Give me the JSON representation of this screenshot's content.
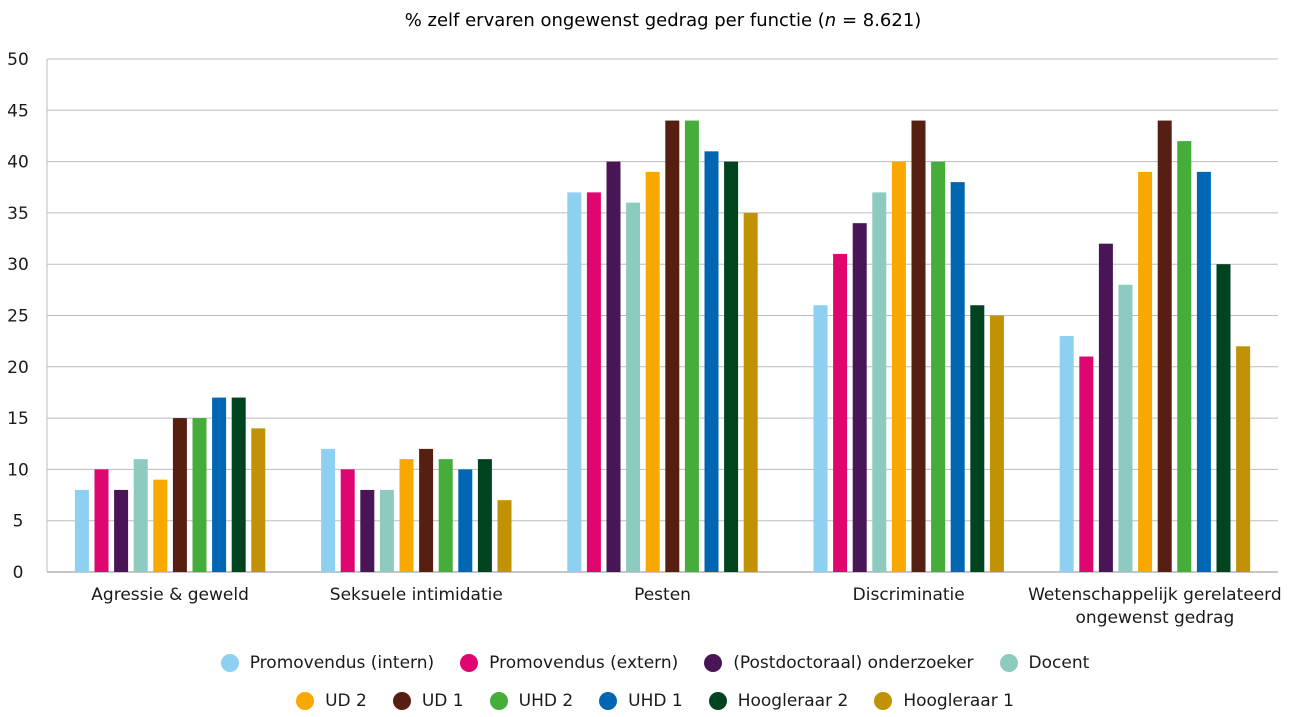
{
  "chart_data": {
    "type": "bar",
    "title_prefix": "% zelf ervaren ongewenst gedrag per functie (",
    "title_n": "n",
    "title_suffix": " = 8.621)",
    "categories": [
      [
        "Agressie & geweld"
      ],
      [
        "Seksuele intimidatie"
      ],
      [
        "Pesten"
      ],
      [
        "Discriminatie"
      ],
      [
        "Wetenschappelijk gerelateerd",
        "ongewenst gedrag"
      ]
    ],
    "ylim": [
      0,
      50
    ],
    "yticks": [
      0,
      5,
      10,
      15,
      20,
      25,
      30,
      35,
      40,
      45,
      50
    ],
    "grid": true,
    "legend_position": "bottom",
    "series": [
      {
        "name": "Promovendus (intern)",
        "color": "#8ed0f1",
        "values": [
          8,
          12,
          37,
          26,
          23
        ]
      },
      {
        "name": "Promovendus (extern)",
        "color": "#e0066f",
        "values": [
          10,
          10,
          37,
          31,
          21
        ]
      },
      {
        "name": "(Postdoctoraal) onderzoeker",
        "color": "#4a1557",
        "values": [
          8,
          8,
          40,
          34,
          32
        ]
      },
      {
        "name": "Docent",
        "color": "#8dcbc1",
        "values": [
          11,
          8,
          36,
          37,
          28
        ]
      },
      {
        "name": "UD 2",
        "color": "#f9a800",
        "values": [
          9,
          11,
          39,
          40,
          39
        ]
      },
      {
        "name": "UD 1",
        "color": "#561f12",
        "values": [
          15,
          12,
          44,
          44,
          44
        ]
      },
      {
        "name": "UHD 2",
        "color": "#45ad3a",
        "values": [
          15,
          11,
          44,
          40,
          42
        ]
      },
      {
        "name": "UHD 1",
        "color": "#0066b2",
        "values": [
          17,
          10,
          41,
          38,
          39
        ]
      },
      {
        "name": "Hoogleraar 2",
        "color": "#00431f",
        "values": [
          17,
          11,
          40,
          26,
          30
        ]
      },
      {
        "name": "Hoogleraar 1",
        "color": "#c19106",
        "values": [
          14,
          7,
          35,
          25,
          22
        ]
      }
    ]
  }
}
